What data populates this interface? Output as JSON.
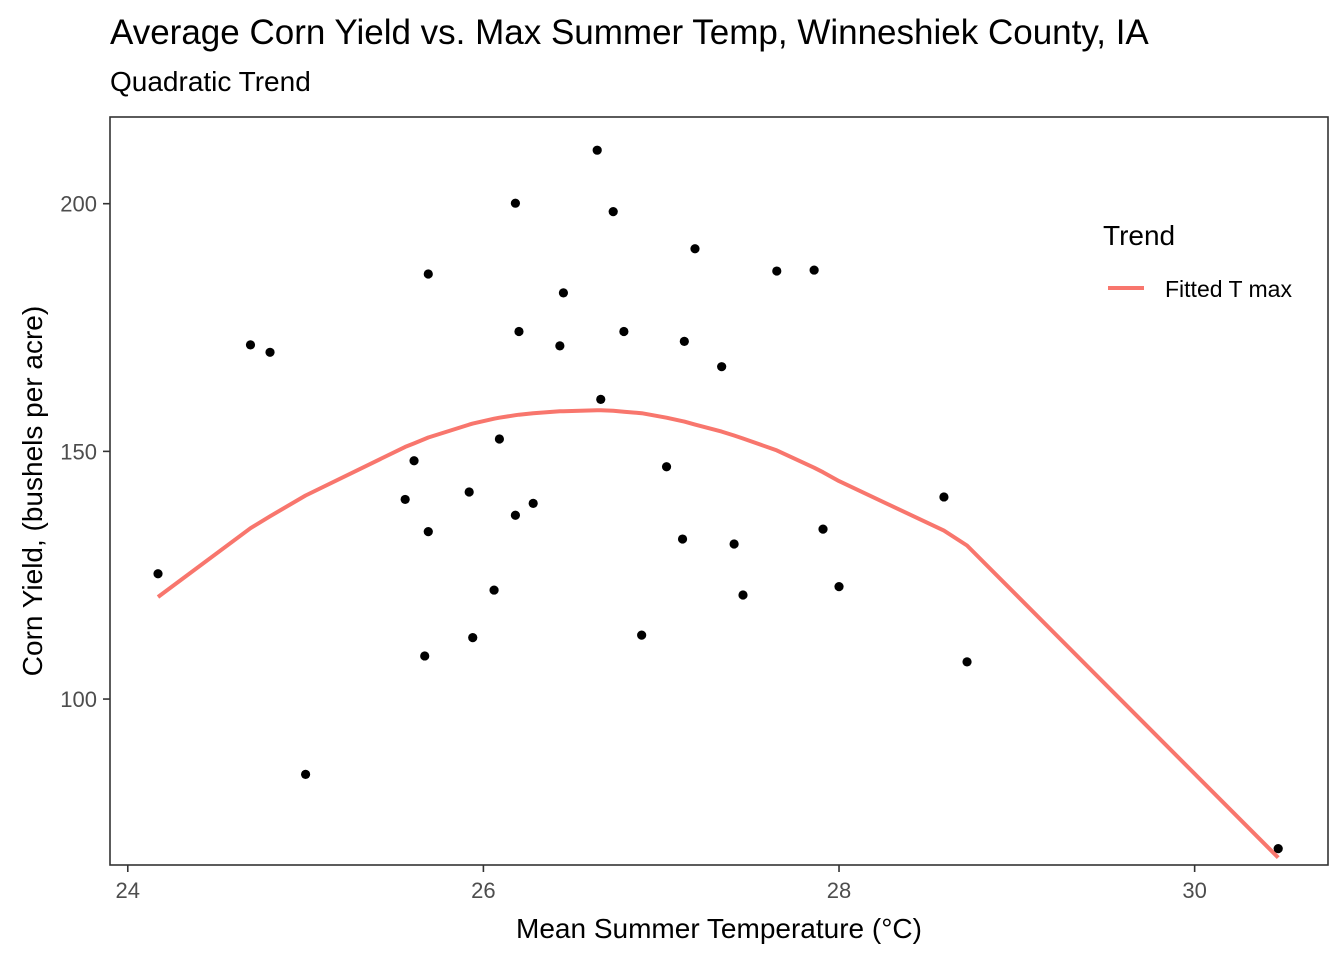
{
  "chart_data": {
    "type": "scatter",
    "title": "Average Corn Yield vs. Max Summer Temp, Winneshiek County, IA",
    "subtitle": "Quadratic Trend",
    "xlabel": "Mean Summer Temperature (°C)",
    "ylabel": "Corn Yield, (bushels per acre)",
    "xlim": [
      23.9,
      30.75
    ],
    "ylim": [
      66.5,
      217.5
    ],
    "x_ticks": [
      24,
      26,
      28,
      30
    ],
    "y_ticks": [
      100,
      150,
      200
    ],
    "x_tick_labels": [
      "24",
      "26",
      "28",
      "30"
    ],
    "y_tick_labels": [
      "100",
      "150",
      "200"
    ],
    "grid": false,
    "legend": {
      "title": "Trend",
      "position": "right-inside-top"
    },
    "points": {
      "color": "#000000",
      "x": [
        24.17,
        24.69,
        24.8,
        25.0,
        25.56,
        25.61,
        25.67,
        25.69,
        25.69,
        25.92,
        25.94,
        26.06,
        26.09,
        26.18,
        26.18,
        26.2,
        26.28,
        26.43,
        26.45,
        26.64,
        26.66,
        26.73,
        26.79,
        26.89,
        27.03,
        27.12,
        27.13,
        27.19,
        27.34,
        27.41,
        27.46,
        27.65,
        27.86,
        27.91,
        28.0,
        28.59,
        28.72,
        30.47
      ],
      "y": [
        125.3,
        171.5,
        170.0,
        84.8,
        140.3,
        148.1,
        108.7,
        133.8,
        185.8,
        141.8,
        112.4,
        122.0,
        152.5,
        200.1,
        137.1,
        174.2,
        139.5,
        171.3,
        182.0,
        210.8,
        160.5,
        198.4,
        174.2,
        112.9,
        146.9,
        132.3,
        172.2,
        190.9,
        167.1,
        131.3,
        121.0,
        186.4,
        186.6,
        134.3,
        122.7,
        140.8,
        107.5,
        69.8
      ]
    },
    "series": [
      {
        "name": "Fitted T max",
        "type": "line",
        "color": "#f8766d",
        "x": [
          24.17,
          24.69,
          24.8,
          25.0,
          25.56,
          25.61,
          25.67,
          25.69,
          25.92,
          25.94,
          26.06,
          26.09,
          26.18,
          26.2,
          26.28,
          26.43,
          26.45,
          26.64,
          26.66,
          26.73,
          26.79,
          26.89,
          27.03,
          27.12,
          27.13,
          27.19,
          27.34,
          27.41,
          27.46,
          27.65,
          27.86,
          27.91,
          28.0,
          28.59,
          28.72,
          30.47
        ],
        "y": [
          120.6,
          134.5,
          136.9,
          141.1,
          150.9,
          151.6,
          152.5,
          152.8,
          155.4,
          155.6,
          156.6,
          156.8,
          157.3,
          157.4,
          157.7,
          158.1,
          158.1,
          158.3,
          158.3,
          158.2,
          158.0,
          157.7,
          156.8,
          156.1,
          156.0,
          155.4,
          154.0,
          153.2,
          152.6,
          150.2,
          146.7,
          145.8,
          144.0,
          134.0,
          131.0,
          68.0
        ]
      }
    ]
  }
}
